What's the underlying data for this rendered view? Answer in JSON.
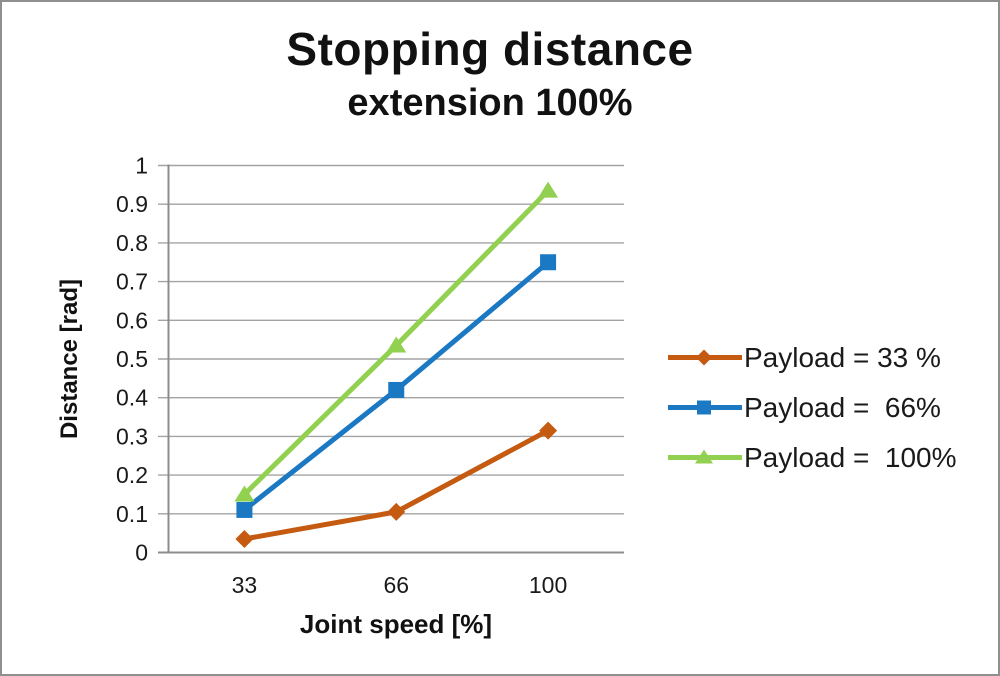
{
  "chart_data": {
    "type": "line",
    "title": "Stopping distance",
    "subtitle": "extension 100%",
    "xlabel": "Joint speed [%]",
    "ylabel": "Distance [rad]",
    "categories": [
      "33",
      "66",
      "100"
    ],
    "y_tick_labels": [
      "0",
      "0.1",
      "0.2",
      "0.3",
      "0.4",
      "0.5",
      "0.6",
      "0.7",
      "0.8",
      "0.9",
      "1"
    ],
    "ylim": [
      0,
      1
    ],
    "y_tick_step": 0.1,
    "grid": "horizontal",
    "legend_position": "right",
    "series": [
      {
        "name": "Payload = 33 %",
        "marker": "diamond",
        "color": "#C55A11",
        "values": [
          0.035,
          0.105,
          0.315
        ]
      },
      {
        "name": "Payload =  66%",
        "marker": "square",
        "color": "#1B78C3",
        "values": [
          0.11,
          0.42,
          0.75
        ]
      },
      {
        "name": "Payload =  100%",
        "marker": "triangle",
        "color": "#92D050",
        "values": [
          0.15,
          0.535,
          0.935
        ]
      }
    ]
  },
  "style_colors": {
    "gridline": "#a3a3a3",
    "axis": "#8c8c8c",
    "tick_text": "#1a1a1a",
    "frame_border": "#8f8f8f"
  }
}
